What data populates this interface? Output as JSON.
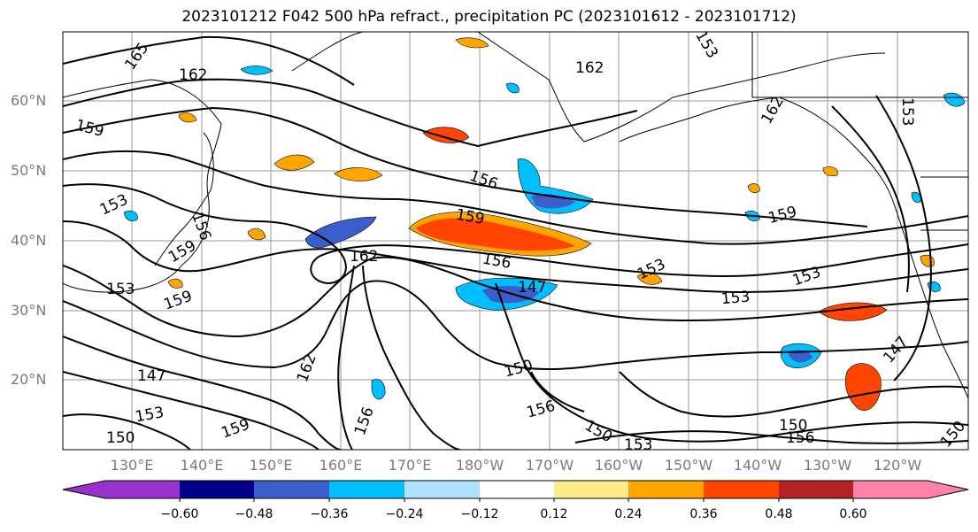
{
  "title": "2023101212 F042 500 hPa refract., precipitation PC (2023101612 - 2023101712)",
  "latitude_labels": [
    "60°N",
    "50°N",
    "40°N",
    "30°N",
    "20°N"
  ],
  "longitude_labels": [
    "130°E",
    "140°E",
    "150°E",
    "160°E",
    "170°E",
    "180°W",
    "170°W",
    "160°W",
    "150°W",
    "140°W",
    "130°W",
    "120°W"
  ],
  "contour_labels": [
    "165",
    "162",
    "162",
    "159",
    "156",
    "153",
    "159",
    "156",
    "153",
    "147",
    "150",
    "153",
    "159",
    "150",
    "159",
    "156",
    "147",
    "153",
    "153",
    "150",
    "147",
    "153",
    "159",
    "156",
    "150",
    "156",
    "153",
    "150",
    "159",
    "162",
    "156",
    "153",
    "162",
    "162",
    "153"
  ],
  "colorbar": {
    "tick_labels": [
      "−0.60",
      "−0.48",
      "−0.36",
      "−0.24",
      "−0.12",
      "0.12",
      "0.24",
      "0.36",
      "0.48",
      "0.60"
    ],
    "colors": [
      "#9932cc",
      "#00008b",
      "#3a5fcd",
      "#00bfff",
      "#b0e2ff",
      "#ffffff",
      "#ffec8b",
      "#ffa500",
      "#ff4500",
      "#b22222",
      "#ff82ab"
    ]
  },
  "colors": {
    "contour": "#000000",
    "grid": "#999999",
    "coastline": "#000000"
  }
}
